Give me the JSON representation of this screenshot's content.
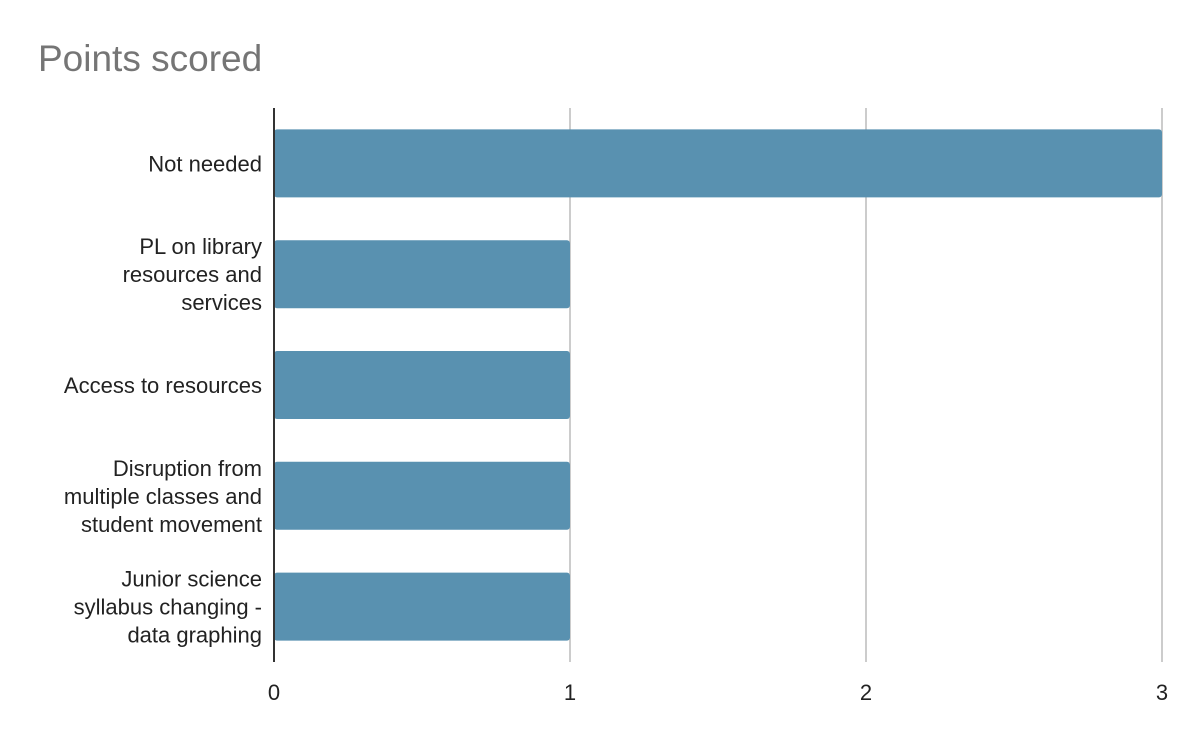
{
  "chart_data": {
    "type": "bar",
    "orientation": "horizontal",
    "title": "Points scored",
    "xlabel": "",
    "ylabel": "",
    "categories": [
      "Not needed",
      "PL on library resources and services",
      "Access to resources",
      "Disruption from multiple classes and student movement",
      "Junior science syllabus changing - data graphing"
    ],
    "category_lines": [
      [
        "Not needed"
      ],
      [
        "PL on library",
        "resources and",
        "services"
      ],
      [
        "Access to resources"
      ],
      [
        "Disruption from",
        "multiple classes and",
        "student movement"
      ],
      [
        "Junior science",
        "syllabus changing -",
        "data graphing"
      ]
    ],
    "values": [
      3,
      1,
      1,
      1,
      1
    ],
    "xlim": [
      0,
      3
    ],
    "xticks": [
      "0",
      "1",
      "2",
      "3"
    ],
    "grid": true,
    "legend": "none",
    "bar_color": "#5991b0",
    "grid_color": "#cccccc",
    "axis_color": "#333333"
  }
}
